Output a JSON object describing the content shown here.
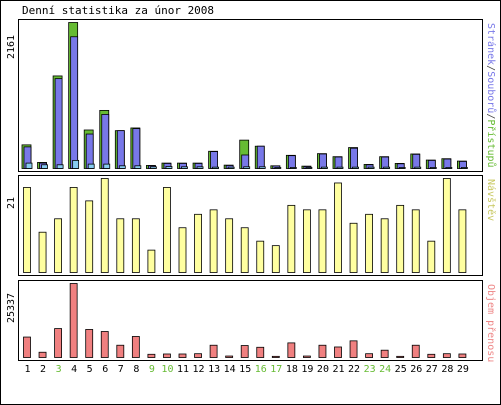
{
  "chart_data": {
    "type": "bar",
    "title": "Denní statistika za únor 2008",
    "days": [
      {
        "label": "1",
        "weekend": false
      },
      {
        "label": "2",
        "weekend": false
      },
      {
        "label": "3",
        "weekend": true
      },
      {
        "label": "4",
        "weekend": false
      },
      {
        "label": "5",
        "weekend": false
      },
      {
        "label": "6",
        "weekend": false
      },
      {
        "label": "7",
        "weekend": false
      },
      {
        "label": "8",
        "weekend": false
      },
      {
        "label": "9",
        "weekend": true
      },
      {
        "label": "10",
        "weekend": true
      },
      {
        "label": "11",
        "weekend": false
      },
      {
        "label": "12",
        "weekend": false
      },
      {
        "label": "13",
        "weekend": false
      },
      {
        "label": "14",
        "weekend": false
      },
      {
        "label": "15",
        "weekend": false
      },
      {
        "label": "16",
        "weekend": true
      },
      {
        "label": "17",
        "weekend": true
      },
      {
        "label": "18",
        "weekend": false
      },
      {
        "label": "19",
        "weekend": false
      },
      {
        "label": "20",
        "weekend": false
      },
      {
        "label": "21",
        "weekend": false
      },
      {
        "label": "22",
        "weekend": false
      },
      {
        "label": "23",
        "weekend": true
      },
      {
        "label": "24",
        "weekend": true
      },
      {
        "label": "25",
        "weekend": false
      },
      {
        "label": "26",
        "weekend": false
      },
      {
        "label": "27",
        "weekend": false
      },
      {
        "label": "28",
        "weekend": false
      },
      {
        "label": "29",
        "weekend": false
      }
    ],
    "panels": [
      {
        "id": "top",
        "ymax_label": "2161",
        "ymax": 2161,
        "legend": [
          {
            "text": "Stránek",
            "color": "#7878e8"
          },
          {
            "text": "/",
            "color": "#444444"
          },
          {
            "text": "Souborů",
            "color": "#7878e8"
          },
          {
            "text": "/",
            "color": "#444444"
          },
          {
            "text": "Přístupů",
            "color": "#66bb33"
          }
        ],
        "series": [
          {
            "name": "Přístupů",
            "color": "#66bb33",
            "values": [
              350,
              90,
              1370,
              2161,
              570,
              860,
              560,
              600,
              45,
              80,
              80,
              80,
              255,
              50,
              420,
              330,
              40,
              195,
              35,
              220,
              175,
              310,
              60,
              175,
              75,
              215,
              125,
              145,
              110
            ]
          },
          {
            "name": "Souborů",
            "color": "#7878e8",
            "values": [
              320,
              80,
              1330,
              1950,
              510,
              800,
              560,
              590,
              40,
              75,
              75,
              75,
              250,
              45,
              200,
              330,
              38,
              190,
              30,
              215,
              170,
              300,
              55,
              170,
              70,
              210,
              120,
              140,
              105
            ]
          },
          {
            "name": "Stránek",
            "color": "#88ccf0",
            "values": [
              80,
              55,
              55,
              120,
              65,
              65,
              40,
              40,
              25,
              30,
              25,
              25,
              20,
              20,
              25,
              25,
              15,
              15,
              15,
              20,
              20,
              20,
              20,
              20,
              15,
              20,
              15,
              15,
              15
            ]
          }
        ]
      },
      {
        "id": "middle",
        "ymax_label": "21",
        "ymax": 21,
        "legend": [
          {
            "text": "Návštěv",
            "color": "#c8c860"
          }
        ],
        "series": [
          {
            "name": "Návštěv",
            "color": "#ffffa0",
            "values": [
              19,
              9,
              12,
              19,
              16,
              21,
              12,
              12,
              5,
              19,
              10,
              13,
              14,
              12,
              10,
              7,
              6,
              15,
              14,
              14,
              20,
              11,
              13,
              12,
              15,
              14,
              7,
              21,
              14
            ]
          }
        ]
      },
      {
        "id": "bottom",
        "ymax_label": "25337",
        "ymax": 25337,
        "legend": [
          {
            "text": "Objem přenosu",
            "color": "#ee8888"
          }
        ],
        "series": [
          {
            "name": "Objem přenosu",
            "color": "#f08080",
            "values": [
              7000,
              1800,
              9900,
              25337,
              9600,
              8900,
              4200,
              7200,
              1100,
              1200,
              1200,
              1300,
              4200,
              500,
              4100,
              3500,
              400,
              5000,
              500,
              4200,
              3600,
              5700,
              1300,
              2500,
              400,
              4200,
              1100,
              1300,
              1200
            ]
          }
        ]
      }
    ]
  }
}
